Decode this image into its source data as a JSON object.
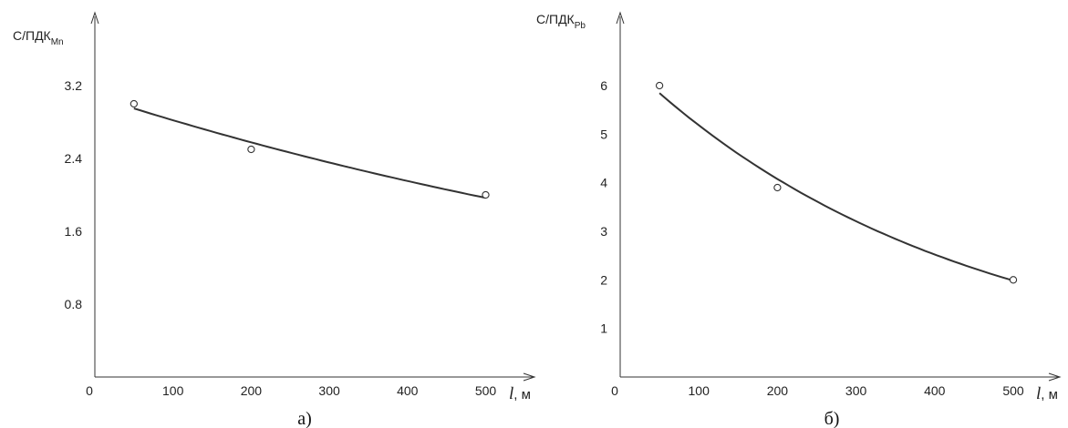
{
  "chart_data": [
    {
      "type": "scatter",
      "caption": "а)",
      "ylabel": "С/ПДК",
      "ylabel_sub": "Mn",
      "xlabel_var": "l",
      "xlabel_unit": ", м",
      "xlim": [
        0,
        560
      ],
      "ylim": [
        0,
        4.0
      ],
      "x_ticks": [
        "0",
        "100",
        "200",
        "300",
        "400",
        "500"
      ],
      "x_tick_values": [
        0,
        100,
        200,
        300,
        400,
        500
      ],
      "y_ticks": [
        "0.8",
        "1.6",
        "2.4",
        "3.2"
      ],
      "y_tick_values": [
        0.8,
        1.6,
        2.4,
        3.2
      ],
      "points": [
        {
          "x": 50,
          "y": 3.0
        },
        {
          "x": 200,
          "y": 2.5
        },
        {
          "x": 500,
          "y": 2.0
        }
      ],
      "trend": {
        "type": "exponential",
        "a": 3.0852,
        "b": -0.0009
      }
    },
    {
      "type": "scatter",
      "caption": "б)",
      "ylabel": "С/ПДК",
      "ylabel_sub": "Pb",
      "xlabel_var": "l",
      "xlabel_unit": ", м",
      "xlim": [
        0,
        560
      ],
      "ylim": [
        0,
        7.5
      ],
      "x_ticks": [
        "0",
        "100",
        "200",
        "300",
        "400",
        "500"
      ],
      "x_tick_values": [
        0,
        100,
        200,
        300,
        400,
        500
      ],
      "y_ticks": [
        "1",
        "2",
        "3",
        "4",
        "5",
        "6"
      ],
      "y_tick_values": [
        1,
        2,
        3,
        4,
        5,
        6
      ],
      "points": [
        {
          "x": 50,
          "y": 6.0
        },
        {
          "x": 200,
          "y": 3.9
        },
        {
          "x": 500,
          "y": 2.0
        }
      ],
      "trend": {
        "type": "exponential",
        "a": 6.5889,
        "b": -0.0024
      }
    }
  ]
}
